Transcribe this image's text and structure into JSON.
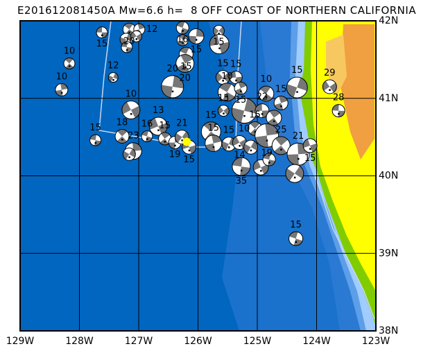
{
  "title": "E201612081450A Mw=6.6 h=  8 OFF COAST OF NORTHERN CALIFORNIA",
  "map": {
    "lon_range": [
      -129,
      -123
    ],
    "lat_range": [
      38,
      42
    ],
    "lon_labels": [
      "129W",
      "128W",
      "127W",
      "126W",
      "125W",
      "124W",
      "123W"
    ],
    "lat_labels": [
      "42N",
      "41N",
      "40N",
      "39N",
      "38N"
    ],
    "colors": {
      "ocean_deep": "#0066c0",
      "ocean_mid": "#1a72cc",
      "shelf": "#5c9ee8",
      "shallow": "#a0ccff",
      "land_low": "#80cc00",
      "land_mid": "#ffff00",
      "land_high": "#f0a040",
      "mechanism_shaded": "#777777",
      "epicenter": "#ffff00"
    },
    "epicenter": {
      "lon": -126.19,
      "lat": 40.44
    },
    "mechanisms": [
      {
        "lon": -127.62,
        "lat": 41.85,
        "depth": "15"
      },
      {
        "lon": -127.16,
        "lat": 41.89,
        "depth": "20"
      },
      {
        "lon": -126.99,
        "lat": 41.89,
        "depth": "12"
      },
      {
        "lon": -127.21,
        "lat": 41.76,
        "depth": ""
      },
      {
        "lon": -127.04,
        "lat": 41.8,
        "depth": ""
      },
      {
        "lon": -127.2,
        "lat": 41.66,
        "depth": ""
      },
      {
        "lon": -128.17,
        "lat": 41.45,
        "depth": "10"
      },
      {
        "lon": -128.3,
        "lat": 41.11,
        "depth": "10"
      },
      {
        "lon": -127.43,
        "lat": 41.27,
        "depth": "12"
      },
      {
        "lon": -127.13,
        "lat": 40.85,
        "depth": "10"
      },
      {
        "lon": -127.73,
        "lat": 40.46,
        "depth": "15"
      },
      {
        "lon": -127.28,
        "lat": 40.51,
        "depth": "18"
      },
      {
        "lon": -127.09,
        "lat": 40.32,
        "depth": "23"
      },
      {
        "lon": -127.16,
        "lat": 40.28,
        "depth": ""
      },
      {
        "lon": -126.67,
        "lat": 40.64,
        "depth": "13"
      },
      {
        "lon": -126.86,
        "lat": 40.51,
        "depth": "16"
      },
      {
        "lon": -126.56,
        "lat": 40.48,
        "depth": "15"
      },
      {
        "lon": -126.39,
        "lat": 40.43,
        "depth": "19"
      },
      {
        "lon": -126.27,
        "lat": 40.5,
        "depth": "21"
      },
      {
        "lon": -126.15,
        "lat": 40.37,
        "depth": "15"
      },
      {
        "lon": -126.26,
        "lat": 41.91,
        "depth": "16"
      },
      {
        "lon": -126.26,
        "lat": 41.75,
        "depth": ""
      },
      {
        "lon": -126.03,
        "lat": 41.8,
        "depth": "15"
      },
      {
        "lon": -125.65,
        "lat": 41.87,
        "depth": "15"
      },
      {
        "lon": -125.64,
        "lat": 41.7,
        "depth": ""
      },
      {
        "lon": -126.2,
        "lat": 41.57,
        "depth": "15"
      },
      {
        "lon": -126.22,
        "lat": 41.45,
        "depth": "20"
      },
      {
        "lon": -126.43,
        "lat": 41.15,
        "depth": "20"
      },
      {
        "lon": -125.58,
        "lat": 41.27,
        "depth": "15"
      },
      {
        "lon": -125.36,
        "lat": 41.27,
        "depth": "15"
      },
      {
        "lon": -125.51,
        "lat": 41.08,
        "depth": "10"
      },
      {
        "lon": -125.28,
        "lat": 41.13,
        "depth": "15"
      },
      {
        "lon": -125.22,
        "lat": 40.84,
        "depth": "10"
      },
      {
        "lon": -125.57,
        "lat": 40.84,
        "depth": "15"
      },
      {
        "lon": -124.92,
        "lat": 40.84,
        "depth": "22"
      },
      {
        "lon": -124.85,
        "lat": 41.06,
        "depth": "10"
      },
      {
        "lon": -124.6,
        "lat": 40.94,
        "depth": "15"
      },
      {
        "lon": -124.33,
        "lat": 41.14,
        "depth": "15"
      },
      {
        "lon": -123.78,
        "lat": 41.15,
        "depth": "29"
      },
      {
        "lon": -123.63,
        "lat": 40.84,
        "depth": "28"
      },
      {
        "lon": -125.78,
        "lat": 40.57,
        "depth": "15"
      },
      {
        "lon": -125.74,
        "lat": 40.42,
        "depth": "15"
      },
      {
        "lon": -125.48,
        "lat": 40.41,
        "depth": "15"
      },
      {
        "lon": -125.3,
        "lat": 40.43,
        "depth": "14"
      },
      {
        "lon": -125.27,
        "lat": 40.12,
        "depth": "35"
      },
      {
        "lon": -125.04,
        "lat": 40.61,
        "depth": "15"
      },
      {
        "lon": -124.84,
        "lat": 40.52,
        "depth": "19"
      },
      {
        "lon": -125.11,
        "lat": 40.37,
        "depth": ""
      },
      {
        "lon": -124.94,
        "lat": 40.11,
        "depth": ""
      },
      {
        "lon": -124.8,
        "lat": 40.21,
        "depth": ""
      },
      {
        "lon": -124.6,
        "lat": 40.39,
        "depth": "25"
      },
      {
        "lon": -124.31,
        "lat": 40.28,
        "depth": "21"
      },
      {
        "lon": -124.37,
        "lat": 40.03,
        "depth": ""
      },
      {
        "lon": -124.11,
        "lat": 40.39,
        "depth": "15"
      },
      {
        "lon": -124.35,
        "lat": 39.19,
        "depth": "15"
      },
      {
        "lon": -124.72,
        "lat": 40.75,
        "depth": ""
      }
    ]
  }
}
